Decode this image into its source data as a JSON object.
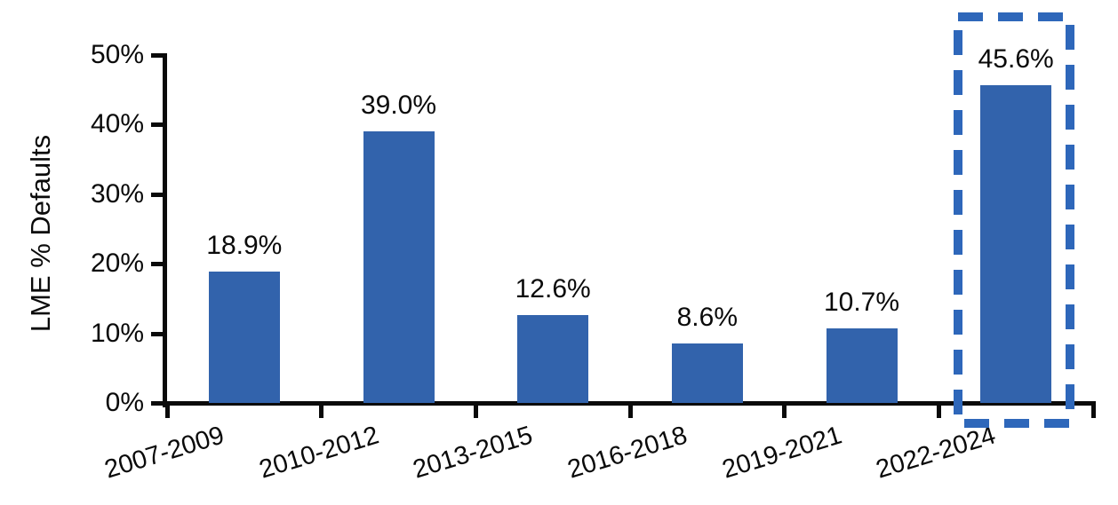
{
  "chart_data": {
    "type": "bar",
    "title": "",
    "xlabel": "",
    "ylabel": "LME % Defaults",
    "categories": [
      "2007-2009",
      "2010-2012",
      "2013-2015",
      "2016-2018",
      "2019-2021",
      "2022-2024"
    ],
    "values": [
      18.9,
      39.0,
      12.6,
      8.6,
      10.7,
      45.6
    ],
    "data_labels": [
      "18.9%",
      "39.0%",
      "12.6%",
      "8.6%",
      "10.7%",
      "45.6%"
    ],
    "ylim": [
      0,
      50
    ],
    "y_tick_labels": [
      "0%",
      "10%",
      "20%",
      "30%",
      "40%",
      "50%"
    ],
    "y_tick_values": [
      0,
      10,
      20,
      30,
      40,
      50
    ],
    "grid": false,
    "legend_position": "none",
    "bar_color": "#3263ac",
    "axis_color": "#0a0a0a",
    "highlight": {
      "category": "2022-2024",
      "style": "dashed-box",
      "color": "#2e67ba"
    }
  }
}
